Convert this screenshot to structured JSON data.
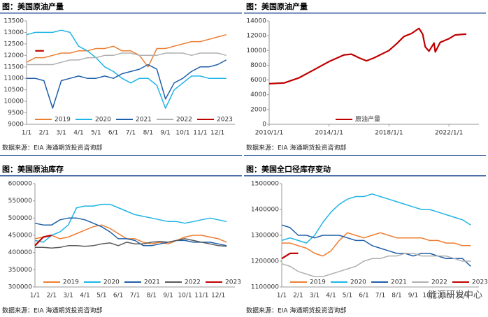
{
  "chart_data": [
    {
      "type": "line",
      "title": "图：美国原油产量",
      "source": "数据来源：EIA   海通期货投资咨询部",
      "categories": [
        "1/1",
        null,
        "2/1",
        null,
        "3/1",
        null,
        "4/1",
        null,
        "5/1",
        null,
        "6/1",
        null,
        "7/1",
        null,
        "8/1",
        null,
        "9/1",
        null,
        "10/1",
        null,
        "11/1",
        null,
        "12/1",
        null
      ],
      "ylim": [
        9000,
        13500
      ],
      "yticks": [
        9000,
        9500,
        10000,
        10500,
        11000,
        11500,
        12000,
        12500,
        13000,
        13500
      ],
      "series": [
        {
          "name": "2019",
          "color": "#ed7d31",
          "values": [
            11700,
            11900,
            11900,
            12000,
            12100,
            12100,
            12200,
            12200,
            12300,
            12300,
            12400,
            12200,
            12200,
            12000,
            11500,
            12300,
            12300,
            12400,
            12500,
            12600,
            12600,
            12700,
            12800,
            12900
          ]
        },
        {
          "name": "2020",
          "color": "#1fb4e6",
          "values": [
            12900,
            13000,
            13000,
            13000,
            13100,
            13000,
            12400,
            12200,
            11900,
            11500,
            11300,
            11000,
            10800,
            11000,
            11000,
            10700,
            9700,
            10500,
            10800,
            11100,
            11100,
            11000,
            11000,
            11000
          ]
        },
        {
          "name": "2021",
          "color": "#1f5fa8",
          "values": [
            11000,
            11000,
            10900,
            9700,
            10900,
            11000,
            11100,
            11000,
            11000,
            11100,
            11000,
            11200,
            11300,
            11400,
            11600,
            11400,
            10100,
            10800,
            11000,
            11300,
            11500,
            11500,
            11600,
            11800
          ]
        },
        {
          "name": "2022",
          "color": "#b0b0b0",
          "values": [
            11600,
            11600,
            11600,
            11600,
            11700,
            11800,
            11800,
            11900,
            11900,
            12000,
            12000,
            12100,
            12100,
            12000,
            12000,
            12000,
            12100,
            12100,
            12100,
            12000,
            12100,
            12100,
            12100,
            12000
          ]
        },
        {
          "name": "2023",
          "color": "#c00000",
          "values": [
            null,
            12200,
            12200,
            null,
            null,
            null,
            null,
            null,
            null,
            null,
            null,
            null,
            null,
            null,
            null,
            null,
            null,
            null,
            null,
            null,
            null,
            null,
            null,
            null
          ]
        }
      ]
    },
    {
      "type": "dateline",
      "title": "图：美国原油产量",
      "source": "数据来源：EIA   海通期货投资咨询部",
      "x": [
        "2010/1/1",
        "2011/1/1",
        "2012/1/1",
        "2013/1/1",
        "2014/1/1",
        "2015/1/1",
        "2015/7/1",
        "2016/1/1",
        "2016/7/1",
        "2017/1/1",
        "2018/1/1",
        "2018/7/1",
        "2019/1/1",
        "2019/7/1",
        "2020/1/1",
        "2020/4/1",
        "2020/6/1",
        "2020/9/1",
        "2021/1/1",
        "2021/2/1",
        "2021/6/1",
        "2022/1/1",
        "2022/6/1",
        "2023/1/1",
        "2023/3/1"
      ],
      "xlim": [
        "2010/1/1",
        "2024/1/1"
      ],
      "xticks": [
        "2010/1/1",
        "2014/1/1",
        "2018/1/1",
        "2022/1/1"
      ],
      "ylim": [
        0,
        14000
      ],
      "yticks": [
        0,
        2000,
        4000,
        6000,
        8000,
        10000,
        12000,
        14000
      ],
      "series": [
        {
          "name": "原油产量",
          "color": "#c00000",
          "values": [
            5500,
            5600,
            6300,
            7400,
            8500,
            9400,
            9500,
            9000,
            8600,
            9000,
            10000,
            10900,
            11900,
            12300,
            13000,
            12200,
            10500,
            9900,
            11000,
            9800,
            11100,
            11600,
            12100,
            12200,
            12200
          ]
        }
      ]
    },
    {
      "type": "line",
      "title": "图：美国原油库存",
      "source": "数据来源：EIA   海通期货投资咨询部",
      "categories": [
        "1/1",
        null,
        "2/1",
        null,
        "3/1",
        null,
        "4/1",
        null,
        "5/1",
        null,
        "6/1",
        null,
        "7/1",
        null,
        "8/1",
        null,
        "9/1",
        null,
        "10/1",
        null,
        "11/1",
        null,
        "12/1",
        null
      ],
      "ylim": [
        300000,
        600000
      ],
      "yticks": [
        300000,
        350000,
        400000,
        450000,
        500000,
        550000,
        600000
      ],
      "series": [
        {
          "name": "2019",
          "color": "#ed7d31",
          "values": [
            440000,
            445000,
            450000,
            440000,
            445000,
            455000,
            465000,
            475000,
            480000,
            470000,
            455000,
            440000,
            440000,
            430000,
            425000,
            430000,
            425000,
            435000,
            445000,
            450000,
            450000,
            445000,
            440000,
            430000
          ]
        },
        {
          "name": "2020",
          "color": "#1fb4e6",
          "values": [
            435000,
            430000,
            450000,
            460000,
            480000,
            530000,
            535000,
            535000,
            540000,
            540000,
            530000,
            520000,
            510000,
            505000,
            500000,
            495000,
            490000,
            490000,
            485000,
            490000,
            495000,
            500000,
            495000,
            490000
          ]
        },
        {
          "name": "2021",
          "color": "#1f5fa8",
          "values": [
            485000,
            480000,
            480000,
            495000,
            500000,
            500000,
            495000,
            485000,
            475000,
            460000,
            440000,
            440000,
            435000,
            420000,
            420000,
            425000,
            430000,
            435000,
            435000,
            430000,
            430000,
            430000,
            425000,
            420000
          ]
        },
        {
          "name": "2022",
          "color": "#595959",
          "values": [
            415000,
            415000,
            413000,
            415000,
            420000,
            420000,
            418000,
            420000,
            425000,
            428000,
            420000,
            430000,
            425000,
            425000,
            430000,
            432000,
            430000,
            435000,
            440000,
            435000,
            430000,
            425000,
            420000,
            418000
          ]
        },
        {
          "name": "2023",
          "color": "#c00000",
          "values": [
            420000,
            445000,
            450000,
            null,
            null,
            null,
            null,
            null,
            null,
            null,
            null,
            null,
            null,
            null,
            null,
            null,
            null,
            null,
            null,
            null,
            null,
            null,
            null,
            null
          ]
        }
      ]
    },
    {
      "type": "line",
      "title": "图：美国全口径库存变动",
      "source": "数据来源：EIA   海通期货投资咨询部",
      "watermark": "能源研发中心",
      "categories": [
        "1/1",
        null,
        "2/1",
        null,
        "3/1",
        null,
        "4/1",
        null,
        "5/1",
        null,
        "6/1",
        null,
        "7/1",
        null,
        "8/1",
        null,
        "9/1",
        null,
        "10/1",
        null,
        "11/1",
        null,
        "12/1",
        null
      ],
      "ylim": [
        1100000,
        1500000
      ],
      "yticks": [
        1100000,
        1200000,
        1300000,
        1400000,
        1500000
      ],
      "series": [
        {
          "name": "2019",
          "color": "#ed7d31",
          "values": [
            1270000,
            1270000,
            1260000,
            1250000,
            1230000,
            1220000,
            1240000,
            1280000,
            1310000,
            1300000,
            1290000,
            1300000,
            1310000,
            1300000,
            1290000,
            1290000,
            1290000,
            1290000,
            1280000,
            1280000,
            1270000,
            1270000,
            1260000,
            1260000
          ]
        },
        {
          "name": "2020",
          "color": "#1fb4e6",
          "values": [
            1280000,
            1290000,
            1280000,
            1270000,
            1300000,
            1350000,
            1390000,
            1420000,
            1440000,
            1450000,
            1450000,
            1460000,
            1450000,
            1440000,
            1430000,
            1420000,
            1410000,
            1400000,
            1400000,
            1390000,
            1380000,
            1370000,
            1360000,
            1340000
          ]
        },
        {
          "name": "2021",
          "color": "#1f5fa8",
          "values": [
            1340000,
            1330000,
            1300000,
            1300000,
            1290000,
            1300000,
            1300000,
            1300000,
            1290000,
            1280000,
            1280000,
            1260000,
            1250000,
            1240000,
            1230000,
            1230000,
            1220000,
            1230000,
            1230000,
            1220000,
            1210000,
            1210000,
            1210000,
            1180000
          ]
        },
        {
          "name": "2022",
          "color": "#b0b0b0",
          "values": [
            1190000,
            1180000,
            1160000,
            1150000,
            1140000,
            1140000,
            1150000,
            1160000,
            1170000,
            1180000,
            1200000,
            1210000,
            1210000,
            1220000,
            1220000,
            1230000,
            1230000,
            1220000,
            1220000,
            1220000,
            1220000,
            1210000,
            1200000,
            1200000
          ]
        },
        {
          "name": "2023",
          "color": "#c00000",
          "values": [
            1210000,
            1230000,
            1230000,
            null,
            null,
            null,
            null,
            null,
            null,
            null,
            null,
            null,
            null,
            null,
            null,
            null,
            null,
            null,
            null,
            null,
            null,
            null,
            null,
            null
          ]
        }
      ]
    }
  ]
}
